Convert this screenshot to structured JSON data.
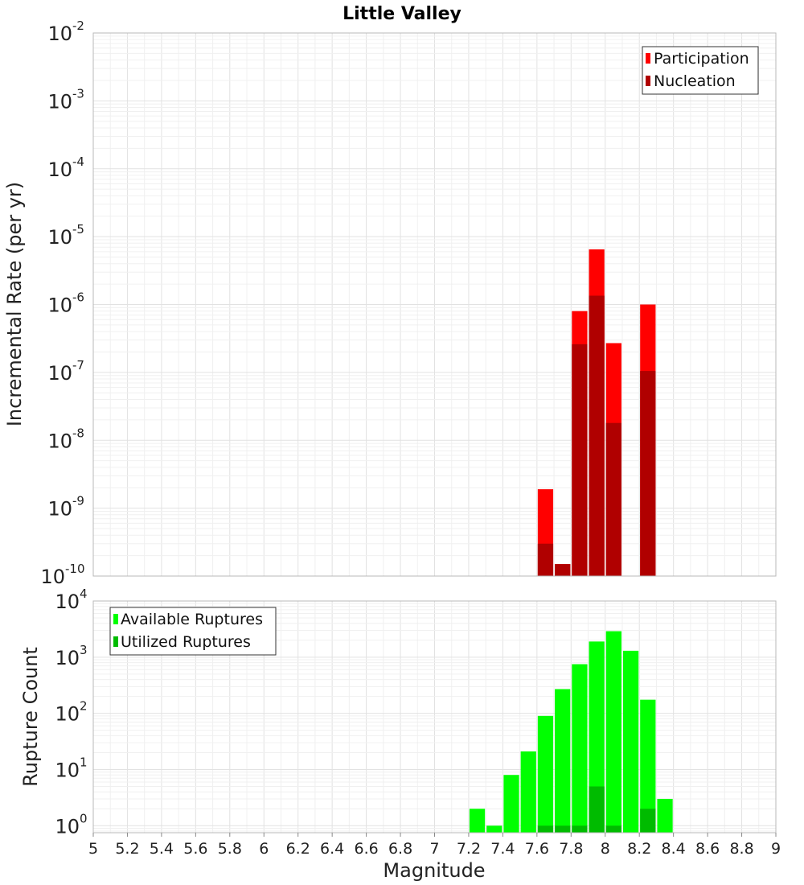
{
  "chart_data": [
    {
      "type": "bar",
      "title": "Little Valley",
      "xlabel": "",
      "ylabel": "Incremental Rate (per yr)",
      "xlim": [
        5,
        9
      ],
      "ylim": [
        1e-10,
        0.01
      ],
      "yscale": "log",
      "ytick_exponents": [
        "-10",
        "-9",
        "-8",
        "-7",
        "-6",
        "-5",
        "-4",
        "-3",
        "-2"
      ],
      "ytick_base": "10",
      "bar_width": 0.1,
      "grid": true,
      "legend_position": "top-right",
      "series": [
        {
          "name": "Participation",
          "color": "#ff0000",
          "x": [
            7.65,
            7.75,
            7.85,
            7.95,
            8.05,
            8.25
          ],
          "values": [
            1.9e-09,
            1.5e-10,
            8e-07,
            6.5e-06,
            2.7e-07,
            1e-06
          ]
        },
        {
          "name": "Nucleation",
          "color": "#b00000",
          "x": [
            7.65,
            7.75,
            7.85,
            7.95,
            8.05,
            8.25
          ],
          "values": [
            3e-10,
            1.5e-10,
            2.6e-07,
            1.35e-06,
            1.8e-08,
            1.05e-07
          ]
        }
      ]
    },
    {
      "type": "bar",
      "title": "",
      "xlabel": "Magnitude",
      "ylabel": "Rupture Count",
      "xlim": [
        5,
        9
      ],
      "ylim": [
        0.75,
        10000.0
      ],
      "yscale": "log",
      "ytick_exponents": [
        "0",
        "1",
        "2",
        "3",
        "4"
      ],
      "ytick_base": "10",
      "xticks": [
        "5",
        "5.2",
        "5.4",
        "5.6",
        "5.8",
        "6",
        "6.2",
        "6.4",
        "6.6",
        "6.8",
        "7",
        "7.2",
        "7.4",
        "7.6",
        "7.8",
        "8",
        "8.2",
        "8.4",
        "8.6",
        "8.8",
        "9"
      ],
      "bar_width": 0.1,
      "grid": true,
      "legend_position": "top-left",
      "series": [
        {
          "name": "Available Ruptures",
          "color": "#00ff00",
          "x": [
            7.25,
            7.35,
            7.45,
            7.55,
            7.65,
            7.75,
            7.85,
            7.95,
            8.05,
            8.15,
            8.25,
            8.35
          ],
          "values": [
            2,
            1,
            8,
            21,
            90,
            270,
            750,
            1900,
            2900,
            1300,
            175,
            3
          ]
        },
        {
          "name": "Utilized Ruptures",
          "color": "#00bb00",
          "x": [
            7.65,
            7.75,
            7.85,
            7.95,
            8.05,
            8.25
          ],
          "values": [
            1,
            1,
            1,
            5,
            1,
            2
          ]
        }
      ]
    }
  ]
}
